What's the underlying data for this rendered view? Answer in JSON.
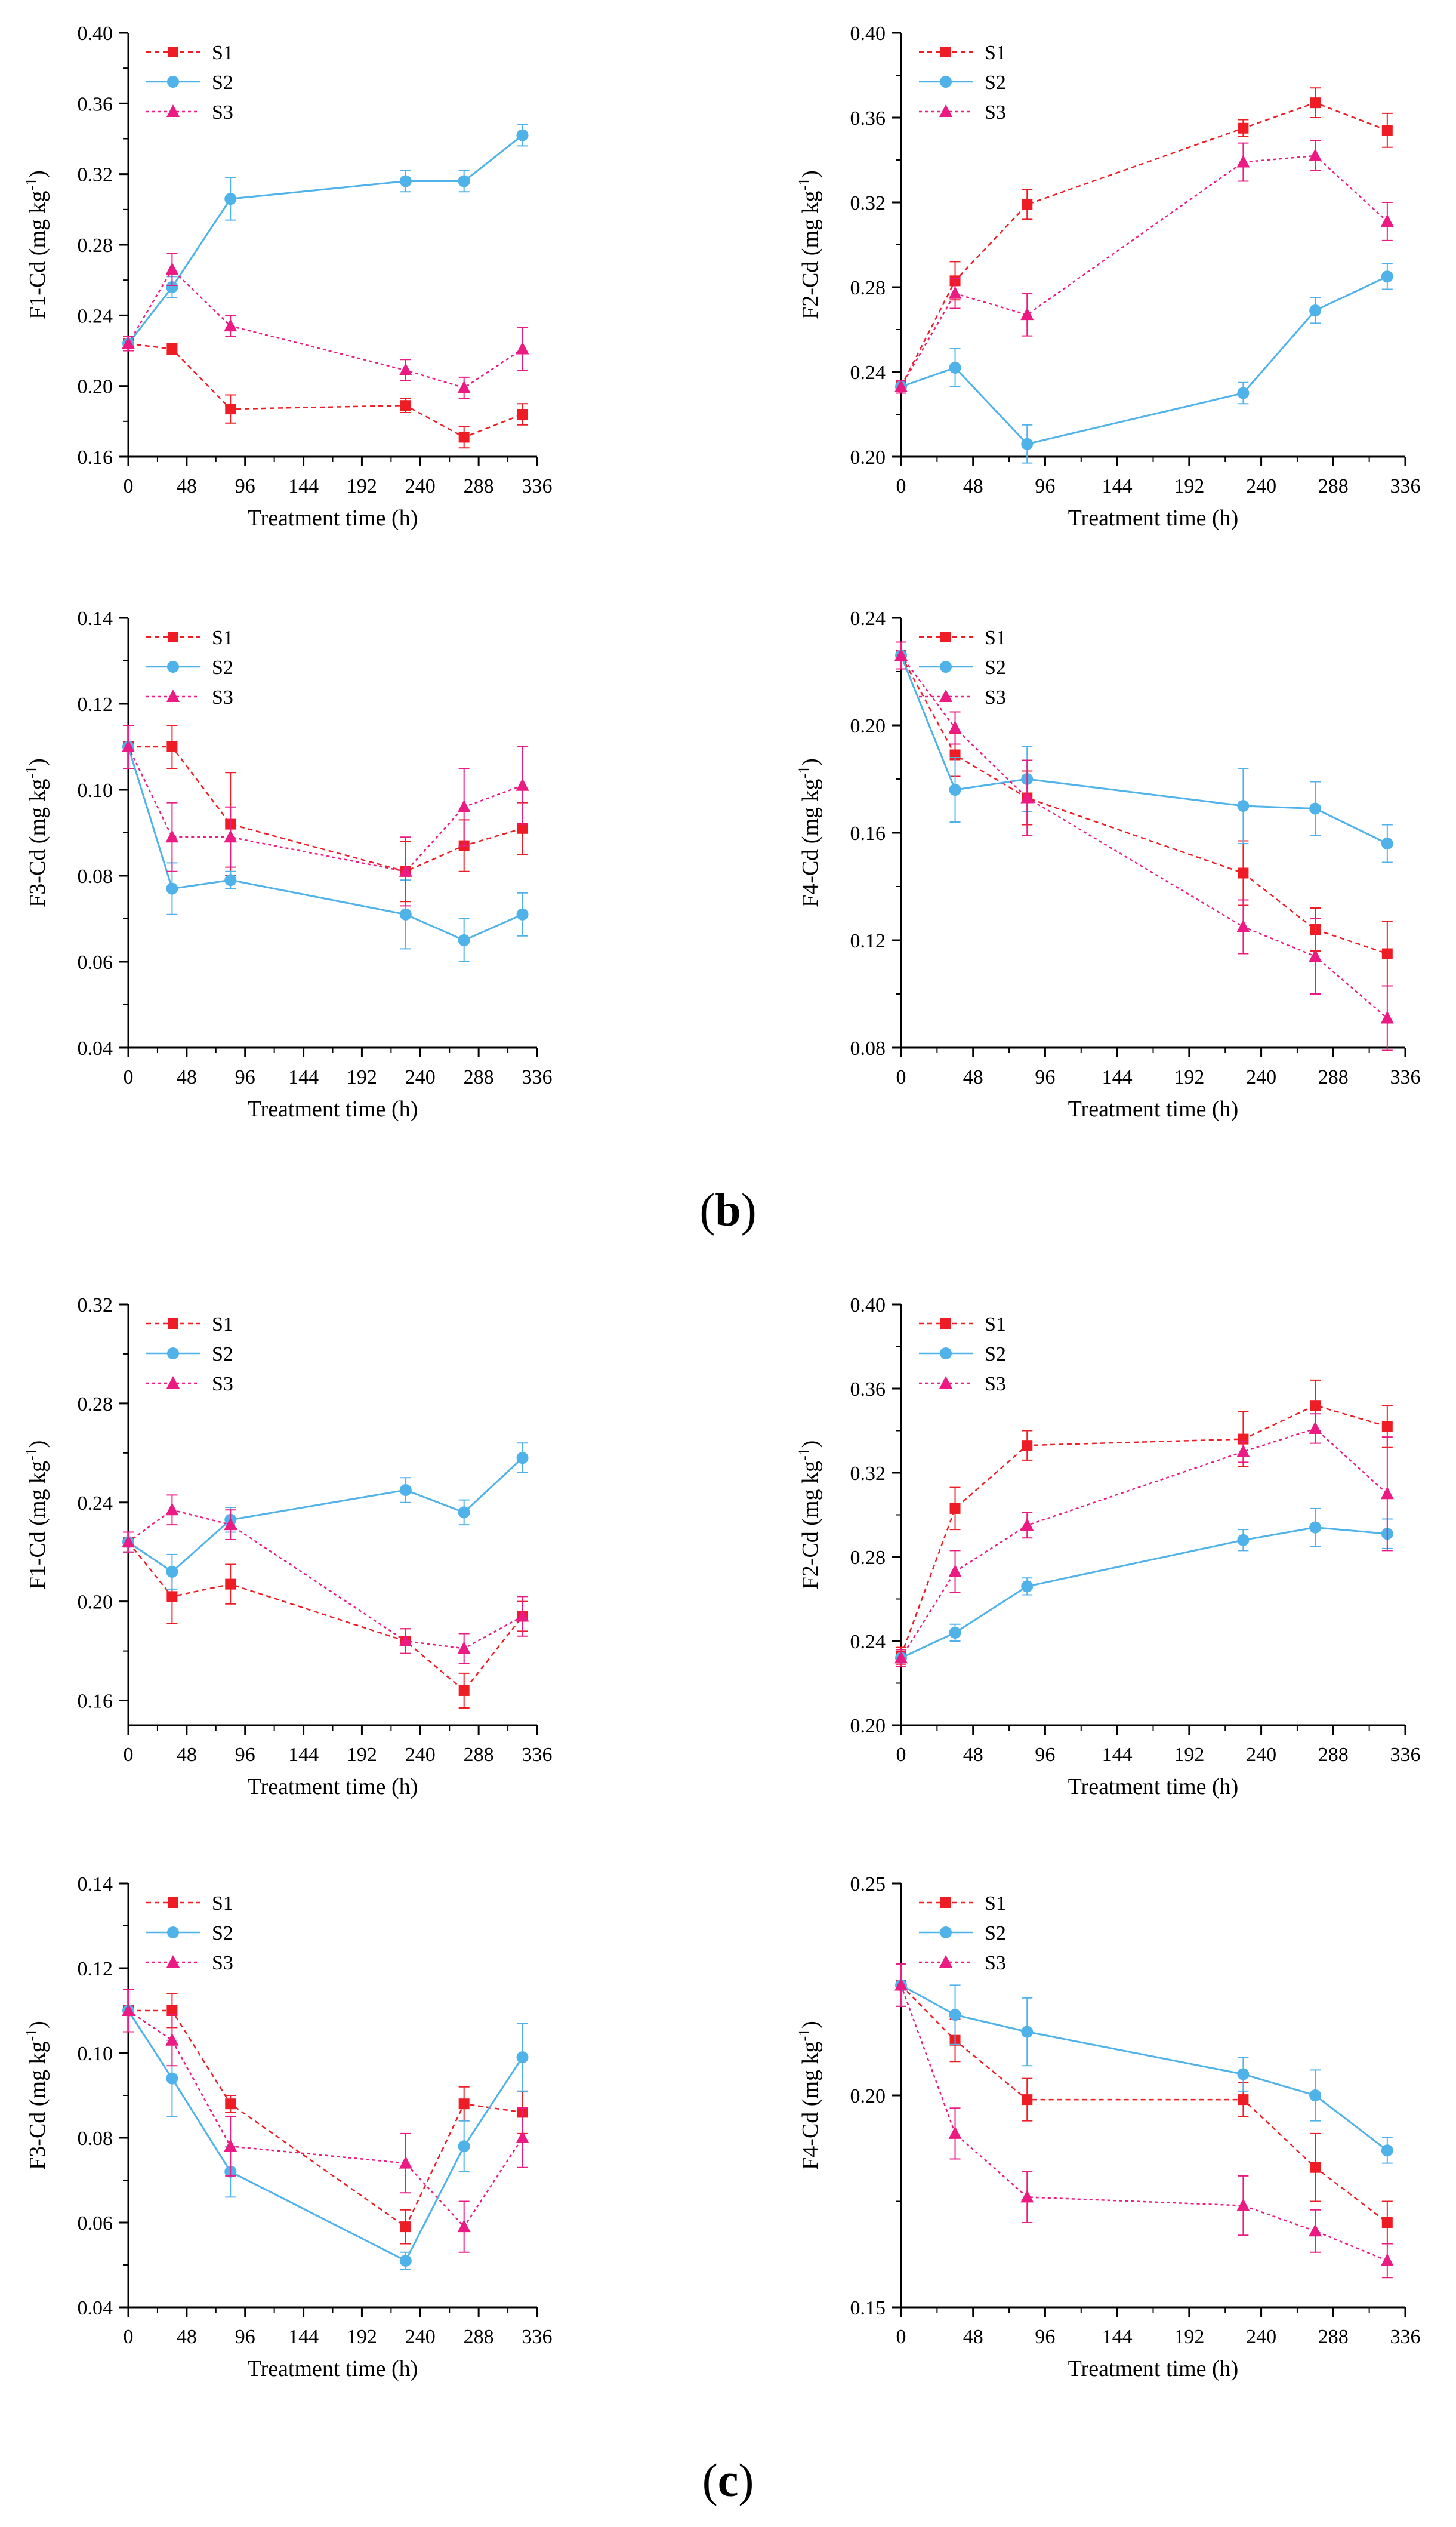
{
  "chart_data": [
    {
      "type": "line",
      "group": "b",
      "title": "",
      "xlabel": "Treatment time (h)",
      "ylabel": "F1-Cd (mg kg-1)",
      "ylabel_base": "F1-Cd (mg kg",
      "ylabel_sup": "-1",
      "ylabel_end": ")",
      "xlim": [
        0,
        336
      ],
      "xticks": [
        "0",
        "48",
        "96",
        "144",
        "192",
        "240",
        "288",
        "336"
      ],
      "ylim": [
        0.16,
        0.4
      ],
      "yticks": [
        "0.16",
        "0.20",
        "0.24",
        "0.28",
        "0.32",
        "0.36",
        "0.40"
      ],
      "x": [
        0,
        36,
        84,
        228,
        276,
        324
      ],
      "series": [
        {
          "name": "S1",
          "values": [
            0.224,
            0.221,
            0.187,
            0.189,
            0.171,
            0.184
          ],
          "errors": [
            0.004,
            0.003,
            0.008,
            0.004,
            0.006,
            0.006
          ]
        },
        {
          "name": "S2",
          "values": [
            0.224,
            0.256,
            0.306,
            0.316,
            0.316,
            0.342
          ],
          "errors": [
            0.004,
            0.006,
            0.012,
            0.006,
            0.006,
            0.006
          ]
        },
        {
          "name": "S3",
          "values": [
            0.224,
            0.266,
            0.234,
            0.209,
            0.199,
            0.221
          ],
          "errors": [
            0.004,
            0.009,
            0.006,
            0.006,
            0.006,
            0.012
          ]
        }
      ]
    },
    {
      "type": "line",
      "group": "b",
      "title": "",
      "xlabel": "Treatment time (h)",
      "ylabel": "F2-Cd (mg kg-1)",
      "ylabel_base": "F2-Cd (mg kg",
      "ylabel_sup": "-1",
      "ylabel_end": ")",
      "xlim": [
        0,
        336
      ],
      "xticks": [
        "0",
        "48",
        "96",
        "144",
        "192",
        "240",
        "288",
        "336"
      ],
      "ylim": [
        0.2,
        0.4
      ],
      "yticks": [
        "0.20",
        "0.24",
        "0.28",
        "0.32",
        "0.36",
        "0.40"
      ],
      "x": [
        0,
        36,
        84,
        228,
        276,
        324
      ],
      "series": [
        {
          "name": "S1",
          "values": [
            0.233,
            0.283,
            0.319,
            0.355,
            0.367,
            0.354
          ],
          "errors": [
            0.003,
            0.009,
            0.007,
            0.004,
            0.007,
            0.008
          ]
        },
        {
          "name": "S2",
          "values": [
            0.233,
            0.242,
            0.206,
            0.23,
            0.269,
            0.285
          ],
          "errors": [
            0.003,
            0.009,
            0.009,
            0.005,
            0.006,
            0.006
          ]
        },
        {
          "name": "S3",
          "values": [
            0.233,
            0.277,
            0.267,
            0.339,
            0.342,
            0.311
          ],
          "errors": [
            0.003,
            0.007,
            0.01,
            0.009,
            0.007,
            0.009
          ]
        }
      ]
    },
    {
      "type": "line",
      "group": "b",
      "title": "",
      "xlabel": "Treatment time (h)",
      "ylabel": "F3-Cd (mg kg-1)",
      "ylabel_base": "F3-Cd (mg kg",
      "ylabel_sup": "-1",
      "ylabel_end": ")",
      "xlim": [
        0,
        336
      ],
      "xticks": [
        "0",
        "48",
        "96",
        "144",
        "192",
        "240",
        "288",
        "336"
      ],
      "ylim": [
        0.04,
        0.14
      ],
      "yticks": [
        "0.04",
        "0.06",
        "0.08",
        "0.10",
        "0.12",
        "0.14"
      ],
      "x": [
        0,
        36,
        84,
        228,
        276,
        324
      ],
      "series": [
        {
          "name": "S1",
          "values": [
            0.11,
            0.11,
            0.092,
            0.081,
            0.087,
            0.091
          ],
          "errors": [
            0.005,
            0.005,
            0.012,
            0.007,
            0.006,
            0.006
          ]
        },
        {
          "name": "S2",
          "values": [
            0.11,
            0.077,
            0.079,
            0.071,
            0.065,
            0.071
          ],
          "errors": [
            0.005,
            0.006,
            0.002,
            0.008,
            0.005,
            0.005
          ]
        },
        {
          "name": "S3",
          "values": [
            0.11,
            0.089,
            0.089,
            0.081,
            0.096,
            0.101
          ],
          "errors": [
            0.005,
            0.008,
            0.007,
            0.008,
            0.009,
            0.009
          ]
        }
      ]
    },
    {
      "type": "line",
      "group": "b",
      "title": "",
      "xlabel": "Treatment time (h)",
      "ylabel": "F4-Cd (mg kg-1)",
      "ylabel_base": "F4-Cd (mg kg",
      "ylabel_sup": "-1",
      "ylabel_end": ")",
      "xlim": [
        0,
        336
      ],
      "xticks": [
        "0",
        "48",
        "96",
        "144",
        "192",
        "240",
        "288",
        "336"
      ],
      "ylim": [
        0.08,
        0.24
      ],
      "yticks": [
        "0.08",
        "0.12",
        "0.16",
        "0.20",
        "0.24"
      ],
      "x": [
        0,
        36,
        84,
        228,
        276,
        324
      ],
      "series": [
        {
          "name": "S1",
          "values": [
            0.226,
            0.189,
            0.173,
            0.145,
            0.124,
            0.115
          ],
          "errors": [
            0.005,
            0.008,
            0.01,
            0.012,
            0.008,
            0.012
          ]
        },
        {
          "name": "S2",
          "values": [
            0.226,
            0.176,
            0.18,
            0.17,
            0.169,
            0.156
          ],
          "errors": [
            0.005,
            0.012,
            0.012,
            0.014,
            0.01,
            0.007
          ]
        },
        {
          "name": "S3",
          "values": [
            0.226,
            0.199,
            0.173,
            0.125,
            0.114,
            0.091
          ],
          "errors": [
            0.005,
            0.006,
            0.014,
            0.01,
            0.014,
            0.012
          ]
        }
      ]
    },
    {
      "type": "line",
      "group": "c",
      "title": "",
      "xlabel": "Treatment time (h)",
      "ylabel": "F1-Cd (mg kg-1)",
      "ylabel_base": "F1-Cd (mg kg",
      "ylabel_sup": "-1",
      "ylabel_end": ")",
      "xlim": [
        0,
        336
      ],
      "xticks": [
        "0",
        "48",
        "96",
        "144",
        "192",
        "240",
        "288",
        "336"
      ],
      "ylim": [
        0.15,
        0.32
      ],
      "yticks": [
        "0.16",
        "0.20",
        "0.24",
        "0.28",
        "0.32"
      ],
      "x": [
        0,
        36,
        84,
        228,
        276,
        324
      ],
      "series": [
        {
          "name": "S1",
          "values": [
            0.224,
            0.202,
            0.207,
            0.184,
            0.164,
            0.194
          ],
          "errors": [
            0.004,
            0.011,
            0.008,
            0.005,
            0.007,
            0.006
          ]
        },
        {
          "name": "S2",
          "values": [
            0.224,
            0.212,
            0.233,
            0.245,
            0.236,
            0.258
          ],
          "errors": [
            0.004,
            0.007,
            0.005,
            0.005,
            0.005,
            0.006
          ]
        },
        {
          "name": "S3",
          "values": [
            0.224,
            0.237,
            0.231,
            0.184,
            0.181,
            0.194
          ],
          "errors": [
            0.004,
            0.006,
            0.006,
            0.005,
            0.006,
            0.008
          ]
        }
      ]
    },
    {
      "type": "line",
      "group": "c",
      "title": "",
      "xlabel": "Treatment time (h)",
      "ylabel": "F2-Cd (mg kg-1)",
      "ylabel_base": "F2-Cd (mg kg",
      "ylabel_sup": "-1",
      "ylabel_end": ")",
      "xlim": [
        0,
        336
      ],
      "xticks": [
        "0",
        "48",
        "96",
        "144",
        "192",
        "240",
        "288",
        "336"
      ],
      "ylim": [
        0.2,
        0.4
      ],
      "yticks": [
        "0.20",
        "0.24",
        "0.28",
        "0.32",
        "0.36",
        "0.40"
      ],
      "x": [
        0,
        36,
        84,
        228,
        276,
        324
      ],
      "series": [
        {
          "name": "S1",
          "values": [
            0.233,
            0.303,
            0.333,
            0.336,
            0.352,
            0.342
          ],
          "errors": [
            0.004,
            0.01,
            0.007,
            0.013,
            0.012,
            0.01
          ]
        },
        {
          "name": "S2",
          "values": [
            0.232,
            0.244,
            0.266,
            0.288,
            0.294,
            0.291
          ],
          "errors": [
            0.004,
            0.004,
            0.004,
            0.005,
            0.009,
            0.007
          ]
        },
        {
          "name": "S3",
          "values": [
            0.232,
            0.273,
            0.295,
            0.33,
            0.341,
            0.31
          ],
          "errors": [
            0.004,
            0.01,
            0.006,
            0.005,
            0.007,
            0.027
          ]
        }
      ]
    },
    {
      "type": "line",
      "group": "c",
      "title": "",
      "xlabel": "Treatment time (h)",
      "ylabel": "F3-Cd (mg kg-1)",
      "ylabel_base": "F3-Cd (mg kg",
      "ylabel_sup": "-1",
      "ylabel_end": ")",
      "xlim": [
        0,
        336
      ],
      "xticks": [
        "0",
        "48",
        "96",
        "144",
        "192",
        "240",
        "288",
        "336"
      ],
      "ylim": [
        0.04,
        0.14
      ],
      "yticks": [
        "0.04",
        "0.06",
        "0.08",
        "0.10",
        "0.12",
        "0.14"
      ],
      "x": [
        0,
        36,
        84,
        228,
        276,
        324
      ],
      "series": [
        {
          "name": "S1",
          "values": [
            0.11,
            0.11,
            0.088,
            0.059,
            0.088,
            0.086
          ],
          "errors": [
            0.005,
            0.004,
            0.002,
            0.004,
            0.004,
            0.005
          ]
        },
        {
          "name": "S2",
          "values": [
            0.11,
            0.094,
            0.072,
            0.051,
            0.078,
            0.099
          ],
          "errors": [
            0.005,
            0.009,
            0.006,
            0.002,
            0.006,
            0.008
          ]
        },
        {
          "name": "S3",
          "values": [
            0.11,
            0.103,
            0.078,
            0.074,
            0.059,
            0.08
          ],
          "errors": [
            0.005,
            0.006,
            0.007,
            0.007,
            0.006,
            0.007
          ]
        }
      ]
    },
    {
      "type": "line",
      "group": "c",
      "title": "",
      "xlabel": "Treatment time (h)",
      "ylabel": "F4-Cd (mg kg-1)",
      "ylabel_base": "F4-Cd (mg kg",
      "ylabel_sup": "-1",
      "ylabel_end": ")",
      "xlim": [
        0,
        336
      ],
      "xticks": [
        "0",
        "48",
        "96",
        "144",
        "192",
        "240",
        "288",
        "336"
      ],
      "ylim": [
        0.15,
        0.25
      ],
      "yticks": [
        "0.15",
        "0.20",
        "0.25"
      ],
      "x": [
        0,
        36,
        84,
        228,
        276,
        324
      ],
      "series": [
        {
          "name": "S1",
          "values": [
            0.226,
            0.213,
            0.199,
            0.199,
            0.183,
            0.17
          ],
          "errors": [
            0.005,
            0.005,
            0.005,
            0.004,
            0.008,
            0.005
          ]
        },
        {
          "name": "S2",
          "values": [
            0.226,
            0.219,
            0.215,
            0.205,
            0.2,
            0.187
          ],
          "errors": [
            0.005,
            0.007,
            0.008,
            0.004,
            0.006,
            0.003
          ]
        },
        {
          "name": "S3",
          "values": [
            0.226,
            0.191,
            0.176,
            0.174,
            0.168,
            0.161
          ],
          "errors": [
            0.005,
            0.006,
            0.006,
            0.007,
            0.005,
            0.004
          ]
        }
      ]
    }
  ],
  "panel_labels": {
    "b": "b",
    "c": "c",
    "open": "(",
    "close": ")"
  },
  "style": {
    "S1": "#ee1c24",
    "S2": "#4fb3ea",
    "S3": "#ec1a83"
  }
}
